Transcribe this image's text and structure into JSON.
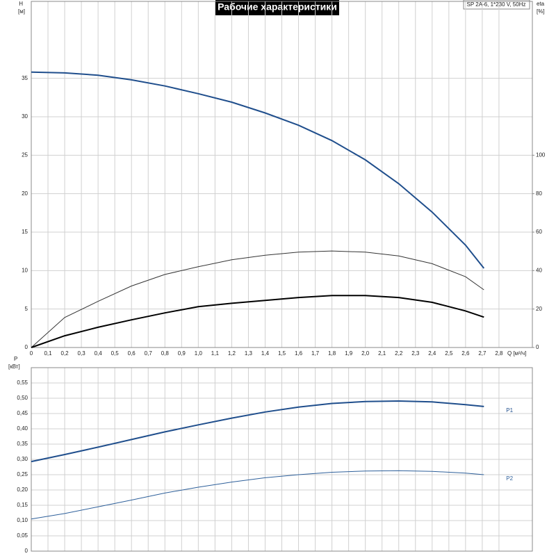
{
  "chart_data": [
    {
      "type": "line",
      "title": "Рабочие характеристики",
      "annotation": "SP 2A-6, 1*230 V, 50Hz",
      "y_label": "H",
      "y_unit": "[м]",
      "y2_label": "eta",
      "y2_unit": "[%]",
      "x_label": "Q [м³/ч]",
      "xlim": [
        0,
        3.0
      ],
      "xticks": [
        0,
        {
          "value": 0.1,
          "label": "0,1"
        },
        {
          "value": 0.2,
          "label": "0,2"
        },
        {
          "value": 0.3,
          "label": "0,3"
        },
        {
          "value": 0.4,
          "label": "0,4"
        },
        {
          "value": 0.5,
          "label": "0,5"
        },
        {
          "value": 0.6,
          "label": "0,6"
        },
        {
          "value": 0.7,
          "label": "0,7"
        },
        {
          "value": 0.8,
          "label": "0,8"
        },
        {
          "value": 0.9,
          "label": "0,9"
        },
        {
          "value": 1.0,
          "label": "1,0"
        },
        {
          "value": 1.1,
          "label": "1,1"
        },
        {
          "value": 1.2,
          "label": "1,2"
        },
        {
          "value": 1.3,
          "label": "1,3"
        },
        {
          "value": 1.4,
          "label": "1,4"
        },
        {
          "value": 1.5,
          "label": "1,5"
        },
        {
          "value": 1.6,
          "label": "1,6"
        },
        {
          "value": 1.7,
          "label": "1,7"
        },
        {
          "value": 1.8,
          "label": "1,8"
        },
        {
          "value": 1.9,
          "label": "1,9"
        },
        {
          "value": 2.0,
          "label": "2,0"
        },
        {
          "value": 2.1,
          "label": "2,1"
        },
        {
          "value": 2.2,
          "label": "2,2"
        },
        {
          "value": 2.3,
          "label": "2,3"
        },
        {
          "value": 2.4,
          "label": "2,4"
        },
        {
          "value": 2.5,
          "label": "2,5"
        },
        {
          "value": 2.6,
          "label": "2,6"
        },
        {
          "value": 2.7,
          "label": "2,7"
        },
        {
          "value": 2.8,
          "label": "2,8"
        }
      ],
      "ylim": [
        0,
        45
      ],
      "yticks": [
        0,
        5,
        10,
        15,
        20,
        25,
        30,
        35
      ],
      "y2lim": [
        0,
        180
      ],
      "y2ticks": [
        0,
        20,
        40,
        60,
        80,
        100
      ],
      "grid": true,
      "x": [
        0,
        0.2,
        0.4,
        0.6,
        0.8,
        1.0,
        1.2,
        1.4,
        1.6,
        1.8,
        2.0,
        2.2,
        2.4,
        2.6,
        2.71
      ],
      "series": [
        {
          "color": "#1f4e8c",
          "width": 2,
          "values": [
            35.8,
            35.7,
            35.4,
            34.8,
            34.0,
            33.0,
            31.9,
            30.5,
            28.9,
            26.9,
            24.4,
            21.3,
            17.6,
            13.3,
            10.3
          ]
        },
        {
          "color": "#333333",
          "width": 1,
          "axis": "y2",
          "values": [
            0,
            15.6,
            24,
            32,
            38,
            42,
            45.6,
            48,
            49.6,
            50.2,
            49.6,
            47.6,
            43.6,
            36.8,
            30
          ]
        },
        {
          "color": "#000000",
          "width": 2,
          "axis": "y2",
          "values": [
            0,
            6.1,
            10.5,
            14.4,
            18,
            21.2,
            23,
            24.5,
            26,
            27,
            27,
            26,
            23.5,
            19,
            15.8
          ]
        }
      ]
    },
    {
      "type": "line",
      "y_label": "P",
      "y_unit": "[кВт]",
      "xlim": [
        0,
        3.0
      ],
      "ylim": [
        0,
        0.6
      ],
      "yticks": [
        0,
        {
          "value": 0.05,
          "label": "0,05"
        },
        {
          "value": 0.1,
          "label": "0,10"
        },
        {
          "value": 0.15,
          "label": "0,15"
        },
        {
          "value": 0.2,
          "label": "0,20"
        },
        {
          "value": 0.25,
          "label": "0,25"
        },
        {
          "value": 0.3,
          "label": "0,30"
        },
        {
          "value": 0.35,
          "label": "0,35"
        },
        {
          "value": 0.4,
          "label": "0,40"
        },
        {
          "value": 0.45,
          "label": "0,45"
        },
        {
          "value": 0.5,
          "label": "0,50"
        },
        {
          "value": 0.55,
          "label": "0,55"
        }
      ],
      "grid": true,
      "x": [
        0,
        0.2,
        0.4,
        0.6,
        0.8,
        1.0,
        1.2,
        1.4,
        1.6,
        1.8,
        2.0,
        2.2,
        2.4,
        2.6,
        2.71
      ],
      "series": [
        {
          "name": "P1",
          "color": "#1f4e8c",
          "width": 2,
          "values": [
            0.293,
            0.316,
            0.34,
            0.365,
            0.39,
            0.413,
            0.435,
            0.455,
            0.471,
            0.483,
            0.489,
            0.491,
            0.488,
            0.479,
            0.473
          ]
        },
        {
          "name": "P2",
          "color": "#2d5f9a",
          "width": 1,
          "values": [
            0.105,
            0.123,
            0.145,
            0.167,
            0.19,
            0.209,
            0.226,
            0.24,
            0.25,
            0.258,
            0.262,
            0.263,
            0.261,
            0.255,
            0.25
          ]
        }
      ]
    }
  ]
}
